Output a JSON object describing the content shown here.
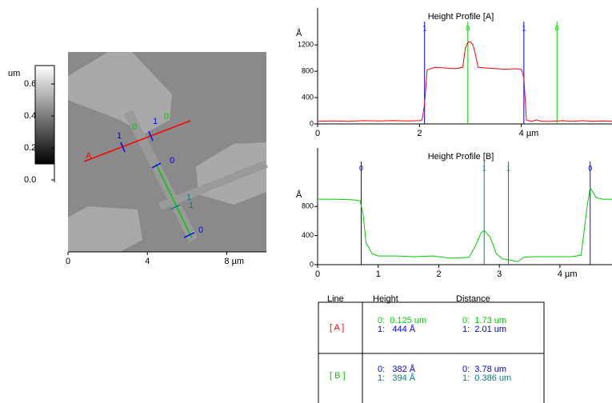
{
  "image": {
    "colorbar": {
      "unit": "um",
      "lim": [
        0,
        0.7
      ],
      "ticks": [
        {
          "value": 0,
          "label": "0.0"
        },
        0.2,
        0.4,
        0.6
      ]
    },
    "xlim": [
      0,
      10
    ],
    "xticks": [
      0,
      4,
      {
        "value": 8,
        "label": "8 µm"
      }
    ],
    "labels": [
      "A",
      "1",
      "0",
      "1",
      "0",
      "0",
      "1",
      "1",
      "0"
    ]
  },
  "chart_data": [
    {
      "type": "line",
      "title": "Height Profile [A]",
      "y_label": "Å",
      "xlim": [
        0,
        5.78
      ],
      "ylim": [
        0,
        1700
      ],
      "xticks": [
        0,
        2,
        {
          "value": 4,
          "label": "4 µm"
        }
      ],
      "yticks": [
        0,
        400,
        800,
        1200
      ],
      "x": [
        0,
        0.3,
        0.6,
        0.9,
        1.2,
        1.5,
        1.8,
        2.0,
        2.05,
        2.1,
        2.15,
        2.3,
        2.5,
        2.7,
        2.85,
        2.9,
        2.95,
        3.0,
        3.05,
        3.1,
        3.15,
        3.3,
        3.5,
        3.7,
        3.9,
        4.0,
        4.05,
        4.1,
        4.2,
        4.3,
        4.4,
        4.6,
        4.8,
        5.0,
        5.2,
        5.4,
        5.6,
        5.78
      ],
      "series": [
        {
          "color": "#ff0000",
          "values": [
            40,
            45,
            40,
            50,
            45,
            50,
            45,
            50,
            60,
            300,
            820,
            860,
            850,
            840,
            860,
            1150,
            1240,
            1250,
            1200,
            1050,
            860,
            850,
            840,
            830,
            840,
            830,
            700,
            60,
            40,
            60,
            40,
            40,
            50,
            40,
            50,
            40,
            45,
            40
          ]
        }
      ],
      "cursors": [
        {
          "label": "1",
          "x": 2.1,
          "color": "#0000ff"
        },
        {
          "label": "0",
          "x": 2.95,
          "color": "#00cc00"
        },
        {
          "label": "1",
          "x": 4.05,
          "color": "#0000ff"
        },
        {
          "label": "0",
          "x": 4.7,
          "color": "#00cc00"
        }
      ]
    },
    {
      "type": "line",
      "title": "Height Profile [B]",
      "y_label": "Å",
      "xlim": [
        0,
        4.86
      ],
      "ylim": [
        0,
        1550
      ],
      "xticks": [
        0,
        1,
        2,
        3,
        {
          "value": 4,
          "label": "4 µm"
        }
      ],
      "yticks": [
        0,
        400,
        800
      ],
      "x": [
        0,
        0.3,
        0.6,
        0.7,
        0.75,
        0.8,
        0.9,
        1.0,
        1.3,
        1.6,
        1.9,
        2.2,
        2.5,
        2.6,
        2.7,
        2.75,
        2.85,
        2.95,
        3.05,
        3.2,
        3.3,
        3.4,
        3.6,
        3.9,
        4.2,
        4.35,
        4.45,
        4.5,
        4.6,
        4.7,
        4.86
      ],
      "series": [
        {
          "color": "#00cc00",
          "values": [
            900,
            900,
            890,
            880,
            700,
            300,
            150,
            120,
            120,
            110,
            120,
            90,
            100,
            250,
            440,
            470,
            380,
            150,
            80,
            60,
            40,
            100,
            110,
            110,
            110,
            130,
            800,
            1060,
            920,
            900,
            900
          ]
        }
      ],
      "cursors": [
        {
          "label": "0",
          "x": 0.72,
          "color": "#0000ff"
        },
        {
          "label": "1",
          "x": 2.75,
          "color": "#008080"
        },
        {
          "label": "1",
          "x": 3.15,
          "color": "#008080"
        },
        {
          "label": "0",
          "x": 4.5,
          "color": "#0000ff"
        }
      ]
    }
  ],
  "table": {
    "headers": [
      "Line",
      "Height",
      "Distance"
    ],
    "rows": [
      {
        "line": "[ A ]",
        "height": [
          "0:  0.125 um",
          "1:   444 Å"
        ],
        "distance": [
          "0:  1.73 um",
          "1:  2.01 um"
        ]
      },
      {
        "line": "[ B ]",
        "height": [
          "0:   382 Å",
          "1:   394 Å"
        ],
        "distance": [
          "0:  3.78 um",
          "1:  0.386 um"
        ]
      }
    ]
  }
}
